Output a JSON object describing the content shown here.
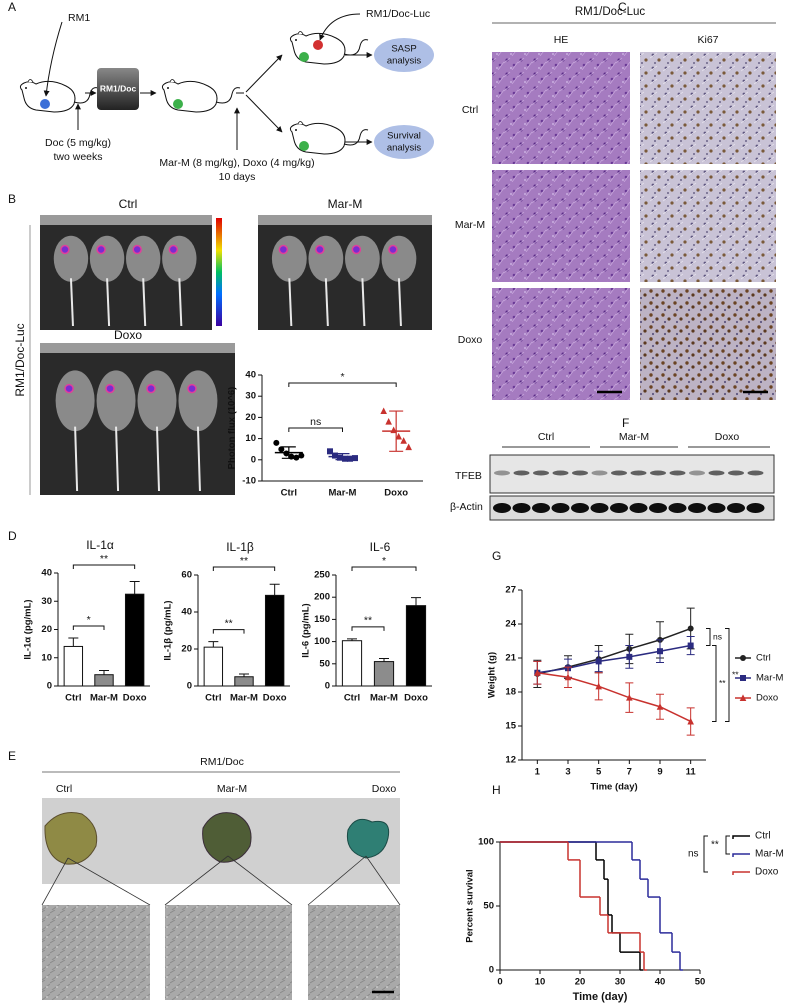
{
  "panel_labels": [
    "A",
    "B",
    "C",
    "D",
    "E",
    "F",
    "G",
    "H"
  ],
  "schematic": {
    "rm1": "RM1",
    "box": "RM1/Doc",
    "luc": "RM1/Doc-Luc",
    "sasp": [
      "SASP",
      "analysis"
    ],
    "survival": [
      "Survival",
      "analysis"
    ],
    "doc": [
      "Doc (5 mg/kg)",
      "two weeks"
    ],
    "treat": [
      "Mar-M (8 mg/kg), Doxo (4 mg/kg)",
      "10 days"
    ]
  },
  "imaging": {
    "side": "RM1/Doc-Luc",
    "groups": [
      "Ctrl",
      "Mar-M",
      "Doxo"
    ]
  },
  "histology": {
    "title": "RM1/Doc-Luc",
    "columns": [
      "HE",
      "Ki67"
    ],
    "rows": [
      "Ctrl",
      "Mar-M",
      "Doxo"
    ]
  },
  "western": {
    "groups": [
      "Ctrl",
      "Mar-M",
      "Doxo"
    ],
    "proteins": [
      "TFEB",
      "β-Actin"
    ]
  },
  "tumors": {
    "title": "RM1/Doc",
    "groups": [
      "Ctrl",
      "Mar-M",
      "Doxo"
    ]
  },
  "chart_data": [
    {
      "type": "dot",
      "ylabel": "Photon flux (10^6)",
      "categories": [
        "Ctrl",
        "Mar-M",
        "Doxo"
      ],
      "points": [
        [
          8,
          5,
          3,
          1.5,
          1,
          2
        ],
        [
          4,
          2,
          1,
          0.5,
          0.5,
          0.8
        ],
        [
          23,
          18,
          14,
          11,
          9,
          6
        ]
      ],
      "means": [
        3.4,
        1.5,
        13.5
      ],
      "errors": [
        2.7,
        1.4,
        9.5
      ],
      "colors": [
        "#000000",
        "#2b2b80",
        "#c8322e"
      ],
      "ylim": [
        -10,
        40
      ],
      "yticks": [
        -10,
        0,
        10,
        20,
        30,
        40
      ],
      "annotations": [
        "ns",
        "*"
      ]
    },
    {
      "type": "bar",
      "title": "IL-1α",
      "ylabel": "IL-1α (pg/mL)",
      "categories": [
        "Ctrl",
        "Mar-M",
        "Doxo"
      ],
      "values": [
        14,
        4,
        32.5
      ],
      "errors": [
        3,
        1.5,
        4.5
      ],
      "colors": [
        "#ffffff",
        "#8c8c8c",
        "#000000"
      ],
      "ylim": [
        0,
        40
      ],
      "yticks": [
        0,
        10,
        20,
        30,
        40
      ],
      "annotations": [
        "*",
        "**"
      ]
    },
    {
      "type": "bar",
      "title": "IL-1β",
      "ylabel": "IL-1β (pg/mL)",
      "categories": [
        "Ctrl",
        "Mar-M",
        "Doxo"
      ],
      "values": [
        21,
        5,
        49
      ],
      "errors": [
        3,
        1.5,
        6
      ],
      "colors": [
        "#ffffff",
        "#8c8c8c",
        "#000000"
      ],
      "ylim": [
        0,
        60
      ],
      "yticks": [
        0,
        20,
        40,
        60
      ],
      "annotations": [
        "**",
        "**"
      ]
    },
    {
      "type": "bar",
      "title": "IL-6",
      "ylabel": "IL-6 (pg/mL)",
      "categories": [
        "Ctrl",
        "Mar-M",
        "Doxo"
      ],
      "values": [
        102,
        55,
        181
      ],
      "errors": [
        4,
        7,
        18
      ],
      "colors": [
        "#ffffff",
        "#8c8c8c",
        "#000000"
      ],
      "ylim": [
        0,
        250
      ],
      "yticks": [
        0,
        50,
        100,
        150,
        200,
        250
      ],
      "annotations": [
        "**",
        "*"
      ]
    },
    {
      "type": "line",
      "xlabel": "Time (day)",
      "ylabel": "Weight (g)",
      "x": [
        1,
        3,
        5,
        7,
        9,
        11
      ],
      "xlim": [
        0,
        12
      ],
      "xticks": [
        1,
        3,
        5,
        7,
        9,
        11
      ],
      "ylim": [
        12,
        27
      ],
      "yticks": [
        12,
        15,
        18,
        21,
        24,
        27
      ],
      "series": [
        {
          "name": "Ctrl",
          "color": "#222222",
          "values": [
            19.6,
            20.2,
            20.9,
            21.8,
            22.6,
            23.6
          ],
          "errors": [
            1.2,
            1,
            1.2,
            1.3,
            1.6,
            1.8
          ]
        },
        {
          "name": "Mar-M",
          "color": "#2b2b80",
          "values": [
            19.7,
            20.1,
            20.7,
            21.1,
            21.6,
            22.1
          ],
          "errors": [
            1,
            0.8,
            0.9,
            1,
            1,
            0.8
          ]
        },
        {
          "name": "Doxo",
          "color": "#c8322e",
          "values": [
            19.7,
            19.3,
            18.5,
            17.5,
            16.7,
            15.4
          ],
          "errors": [
            1,
            0.9,
            1.2,
            1.3,
            1.1,
            1.2
          ]
        }
      ],
      "annotations": [
        "ns",
        "**",
        "**"
      ]
    },
    {
      "type": "survival",
      "xlabel": "Time  (day)",
      "ylabel": "Percent survival",
      "xlim": [
        0,
        50
      ],
      "xticks": [
        0,
        10,
        20,
        30,
        40,
        50
      ],
      "ylim": [
        0,
        100
      ],
      "yticks": [
        0,
        50,
        100
      ],
      "series": [
        {
          "name": "Ctrl",
          "color": "#000000",
          "x": [
            0,
            24,
            26,
            27,
            28,
            30,
            35
          ],
          "values": [
            100,
            86,
            71,
            43,
            29,
            14,
            0
          ]
        },
        {
          "name": "Mar-M",
          "color": "#2b2b9a",
          "x": [
            0,
            33,
            35,
            37,
            40,
            43,
            45
          ],
          "values": [
            100,
            86,
            71,
            57,
            29,
            14,
            0
          ]
        },
        {
          "name": "Doxo",
          "color": "#c8322e",
          "x": [
            0,
            17,
            20,
            25,
            27,
            35,
            36
          ],
          "values": [
            100,
            86,
            57,
            43,
            29,
            14,
            0
          ]
        }
      ],
      "annotations": [
        "ns",
        "**"
      ]
    }
  ]
}
